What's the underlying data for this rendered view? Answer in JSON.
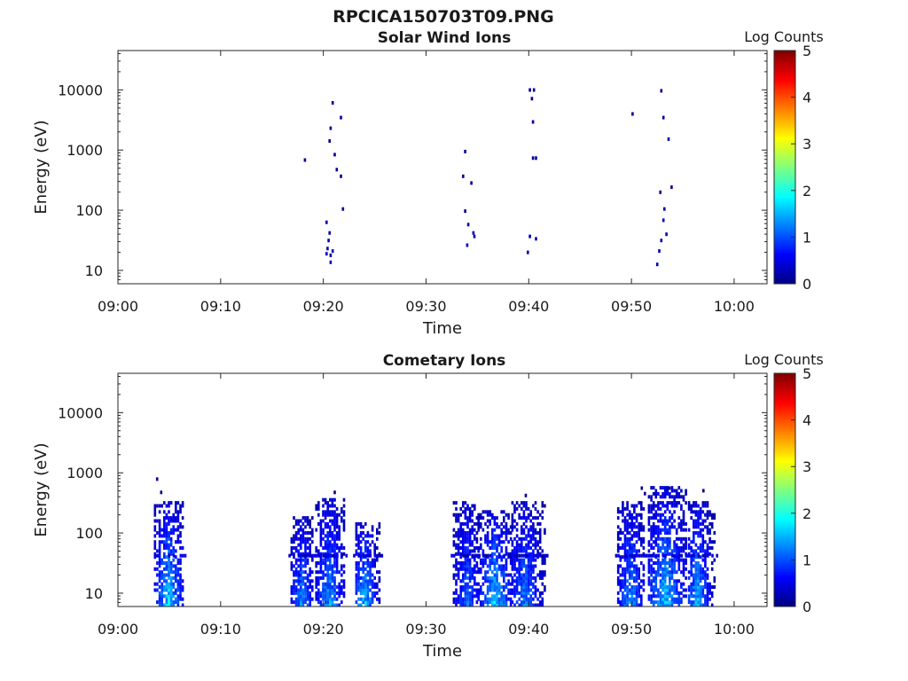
{
  "figure": {
    "title": "RPCICA150703T09.PNG"
  },
  "colorscale": {
    "label": "Log Counts",
    "range": [
      0,
      5
    ],
    "ticks": [
      "0",
      "1",
      "2",
      "3",
      "4",
      "5"
    ],
    "colormap": "jet"
  },
  "chart_data": [
    {
      "type": "heatmap",
      "title": "Solar Wind Ions",
      "xlabel": "Time",
      "ylabel": "Energy (eV)",
      "x_ticks": [
        "09:00",
        "09:10",
        "09:20",
        "09:30",
        "09:40",
        "09:50",
        "10:00"
      ],
      "x_tick_minutes": [
        0,
        10,
        20,
        30,
        40,
        50,
        60
      ],
      "xlim_minutes": [
        0,
        63.2
      ],
      "y_scale": "log",
      "y_ticks": [
        "10",
        "100",
        "1000",
        "10000"
      ],
      "y_tick_values": [
        10,
        100,
        1000,
        10000
      ],
      "ylim": [
        6,
        45000
      ],
      "z_range": [
        0,
        5
      ],
      "points": [
        {
          "t": 18.1,
          "e": 650,
          "v": 0.1
        },
        {
          "t": 20.2,
          "e": 60,
          "v": 0.2
        },
        {
          "t": 20.2,
          "e": 18,
          "v": 0.3
        },
        {
          "t": 20.3,
          "e": 22,
          "v": 0.2
        },
        {
          "t": 20.4,
          "e": 30,
          "v": 0.3
        },
        {
          "t": 20.5,
          "e": 40,
          "v": 0.2
        },
        {
          "t": 20.6,
          "e": 13,
          "v": 0.3
        },
        {
          "t": 20.6,
          "e": 17,
          "v": 0.2
        },
        {
          "t": 20.8,
          "e": 20,
          "v": 0.3
        },
        {
          "t": 20.5,
          "e": 1350,
          "v": 0.1
        },
        {
          "t": 20.6,
          "e": 2200,
          "v": 0.1
        },
        {
          "t": 20.8,
          "e": 5800,
          "v": 0.1
        },
        {
          "t": 21.0,
          "e": 800,
          "v": 0.1
        },
        {
          "t": 21.2,
          "e": 450,
          "v": 0.1
        },
        {
          "t": 21.6,
          "e": 3300,
          "v": 0.1
        },
        {
          "t": 21.6,
          "e": 350,
          "v": 0.1
        },
        {
          "t": 21.8,
          "e": 100,
          "v": 0.1
        },
        {
          "t": 33.5,
          "e": 350,
          "v": 0.1
        },
        {
          "t": 33.7,
          "e": 900,
          "v": 0.1
        },
        {
          "t": 33.7,
          "e": 92,
          "v": 0.1
        },
        {
          "t": 33.9,
          "e": 25,
          "v": 0.4
        },
        {
          "t": 34.0,
          "e": 55,
          "v": 0.2
        },
        {
          "t": 34.3,
          "e": 270,
          "v": 0.1
        },
        {
          "t": 34.5,
          "e": 40,
          "v": 0.3
        },
        {
          "t": 34.6,
          "e": 35,
          "v": 0.2
        },
        {
          "t": 39.8,
          "e": 19,
          "v": 0.2
        },
        {
          "t": 40.0,
          "e": 35,
          "v": 0.2
        },
        {
          "t": 40.0,
          "e": 9500,
          "v": 0.1
        },
        {
          "t": 40.2,
          "e": 6800,
          "v": 0.1
        },
        {
          "t": 40.3,
          "e": 2800,
          "v": 0.1
        },
        {
          "t": 40.3,
          "e": 700,
          "v": 0.1
        },
        {
          "t": 40.4,
          "e": 9500,
          "v": 0.1
        },
        {
          "t": 40.6,
          "e": 700,
          "v": 0.1
        },
        {
          "t": 40.6,
          "e": 32,
          "v": 0.3
        },
        {
          "t": 50.0,
          "e": 3800,
          "v": 0.1
        },
        {
          "t": 52.4,
          "e": 12,
          "v": 0.3
        },
        {
          "t": 52.6,
          "e": 20,
          "v": 0.2
        },
        {
          "t": 52.7,
          "e": 190,
          "v": 0.1
        },
        {
          "t": 52.8,
          "e": 9200,
          "v": 0.1
        },
        {
          "t": 52.8,
          "e": 30,
          "v": 0.2
        },
        {
          "t": 53.0,
          "e": 65,
          "v": 0.3
        },
        {
          "t": 53.1,
          "e": 100,
          "v": 0.2
        },
        {
          "t": 53.0,
          "e": 3300,
          "v": 0.1
        },
        {
          "t": 53.3,
          "e": 38,
          "v": 0.2
        },
        {
          "t": 53.5,
          "e": 1450,
          "v": 0.2
        },
        {
          "t": 53.8,
          "e": 230,
          "v": 0.1
        }
      ]
    },
    {
      "type": "heatmap",
      "title": "Cometary Ions",
      "xlabel": "Time",
      "ylabel": "Energy (eV)",
      "x_ticks": [
        "09:00",
        "09:10",
        "09:20",
        "09:30",
        "09:40",
        "09:50",
        "10:00"
      ],
      "x_tick_minutes": [
        0,
        10,
        20,
        30,
        40,
        50,
        60
      ],
      "xlim_minutes": [
        0,
        63.2
      ],
      "y_scale": "log",
      "y_ticks": [
        "10",
        "100",
        "1000",
        "10000"
      ],
      "y_tick_values": [
        10,
        100,
        1000,
        10000
      ],
      "ylim": [
        6,
        45000
      ],
      "z_range": [
        0,
        5
      ],
      "bursts": [
        {
          "t0": 3.5,
          "t1": 6.3,
          "center": 4.8,
          "peak": 1.9,
          "e_top": 320,
          "flat_e": 40
        },
        {
          "t0": 16.8,
          "t1": 19.0,
          "center": 17.8,
          "peak": 1.5,
          "e_top": 170,
          "flat_e": 40
        },
        {
          "t0": 19.2,
          "t1": 22.0,
          "center": 20.5,
          "peak": 1.6,
          "e_top": 350,
          "flat_e": 40
        },
        {
          "t0": 23.1,
          "t1": 25.5,
          "center": 23.9,
          "peak": 1.8,
          "e_top": 140,
          "flat_e": 40
        },
        {
          "t0": 32.6,
          "t1": 35.0,
          "center": 33.9,
          "peak": 1.3,
          "e_top": 330,
          "flat_e": 40
        },
        {
          "t0": 35.0,
          "t1": 38.2,
          "center": 36.6,
          "peak": 1.9,
          "e_top": 220,
          "flat_e": 40
        },
        {
          "t0": 38.3,
          "t1": 41.6,
          "center": 39.5,
          "peak": 1.4,
          "e_top": 320,
          "flat_e": 40
        },
        {
          "t0": 48.6,
          "t1": 51.3,
          "center": 49.8,
          "peak": 1.5,
          "e_top": 330,
          "flat_e": 40
        },
        {
          "t0": 51.6,
          "t1": 55.4,
          "center": 53.2,
          "peak": 1.8,
          "e_top": 550,
          "flat_e": 40
        },
        {
          "t0": 55.5,
          "t1": 58.0,
          "center": 56.3,
          "peak": 1.7,
          "e_top": 330,
          "flat_e": 40
        }
      ],
      "isolated_points": [
        {
          "t": 3.7,
          "e": 750,
          "v": 0.1
        },
        {
          "t": 4.1,
          "e": 450,
          "v": 0.1
        },
        {
          "t": 21.0,
          "e": 450,
          "v": 0.1
        },
        {
          "t": 39.6,
          "e": 400,
          "v": 0.1
        },
        {
          "t": 50.9,
          "e": 530,
          "v": 0.1
        },
        {
          "t": 51.2,
          "e": 430,
          "v": 0.1
        },
        {
          "t": 53.6,
          "e": 530,
          "v": 0.1
        },
        {
          "t": 56.9,
          "e": 480,
          "v": 0.1
        }
      ]
    }
  ]
}
